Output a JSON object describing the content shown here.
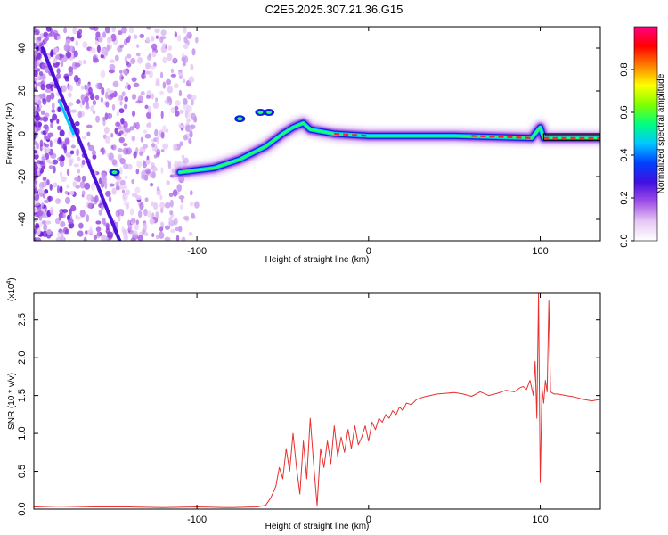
{
  "title": "C2E5.2025.307.21.36.G15",
  "chart_data": [
    {
      "type": "heatmap",
      "title": "C2E5.2025.307.21.36.G15",
      "xlabel": "Height of straight line (km)",
      "ylabel": "Frequency (Hz)",
      "xlim": [
        -195,
        135
      ],
      "ylim": [
        -50,
        50
      ],
      "xticks": [
        -100,
        0,
        100
      ],
      "yticks": [
        -40,
        -20,
        0,
        20,
        40
      ],
      "colorbar": {
        "label": "Normalized spectral amplitude",
        "range": [
          0,
          1
        ],
        "ticks": [
          0.0,
          0.2,
          0.4,
          0.6,
          0.8
        ],
        "colors": [
          "#ffffff",
          "#e6c8f5",
          "#a050e8",
          "#4010e0",
          "#0040ff",
          "#00c8ff",
          "#00ff80",
          "#80ff00",
          "#ffff00",
          "#ff8000",
          "#ff0000",
          "#ff0080"
        ]
      },
      "ridge": {
        "name": "main signal track",
        "points": [
          [
            -110,
            -18
          ],
          [
            -90,
            -16
          ],
          [
            -75,
            -12
          ],
          [
            -60,
            -6
          ],
          [
            -50,
            0
          ],
          [
            -44,
            3
          ],
          [
            -38,
            5
          ],
          [
            -34,
            2
          ],
          [
            -20,
            0
          ],
          [
            0,
            -1
          ],
          [
            50,
            -1
          ],
          [
            95,
            -2
          ],
          [
            100,
            3
          ],
          [
            102,
            -2
          ],
          [
            135,
            -2
          ]
        ]
      },
      "streak": {
        "name": "diagonal interference streak",
        "points": [
          [
            -190,
            40
          ],
          [
            -160,
            -20
          ],
          [
            -145,
            -50
          ]
        ]
      }
    },
    {
      "type": "line",
      "xlabel": "Height of straight line (km)",
      "ylabel": "SNR (10 * v/v)",
      "scale_note": "(x10",
      "scale_exp": "4",
      "xlim": [
        -195,
        135
      ],
      "ylim": [
        0,
        2.85
      ],
      "xticks": [
        -100,
        0,
        100
      ],
      "yticks": [
        0.0,
        0.5,
        1.0,
        1.5,
        2.0,
        2.5
      ],
      "color": "#e83030",
      "series": {
        "name": "SNR",
        "x": [
          -195,
          -180,
          -160,
          -140,
          -120,
          -100,
          -80,
          -65,
          -60,
          -57,
          -54,
          -52,
          -50,
          -48,
          -46,
          -44,
          -42,
          -40,
          -38,
          -36,
          -34,
          -32,
          -30,
          -28,
          -26,
          -24,
          -22,
          -20,
          -18,
          -16,
          -14,
          -12,
          -10,
          -8,
          -6,
          -4,
          -2,
          0,
          2,
          4,
          6,
          8,
          10,
          12,
          14,
          16,
          18,
          20,
          22,
          25,
          28,
          32,
          36,
          40,
          45,
          50,
          55,
          60,
          65,
          70,
          75,
          80,
          85,
          88,
          90,
          92,
          94,
          96,
          97,
          98,
          99,
          100,
          101,
          102,
          103,
          104,
          105,
          106,
          108,
          110,
          115,
          120,
          125,
          130,
          135
        ],
        "values": [
          0.03,
          0.04,
          0.03,
          0.03,
          0.02,
          0.03,
          0.02,
          0.03,
          0.05,
          0.15,
          0.3,
          0.55,
          0.4,
          0.8,
          0.5,
          1.0,
          0.55,
          0.2,
          0.9,
          0.4,
          1.2,
          0.6,
          0.05,
          0.8,
          0.55,
          0.9,
          0.6,
          1.1,
          0.7,
          0.95,
          0.75,
          1.05,
          0.8,
          1.1,
          0.85,
          0.95,
          1.1,
          0.9,
          1.15,
          1.05,
          1.2,
          1.15,
          1.25,
          1.2,
          1.3,
          1.25,
          1.35,
          1.3,
          1.4,
          1.38,
          1.45,
          1.48,
          1.5,
          1.52,
          1.53,
          1.54,
          1.52,
          1.49,
          1.55,
          1.5,
          1.53,
          1.57,
          1.55,
          1.6,
          1.62,
          1.58,
          1.7,
          1.5,
          1.95,
          1.2,
          2.85,
          0.35,
          1.6,
          1.4,
          1.7,
          1.55,
          2.75,
          1.55,
          1.52,
          1.52,
          1.5,
          1.48,
          1.45,
          1.43,
          1.45
        ]
      }
    }
  ]
}
